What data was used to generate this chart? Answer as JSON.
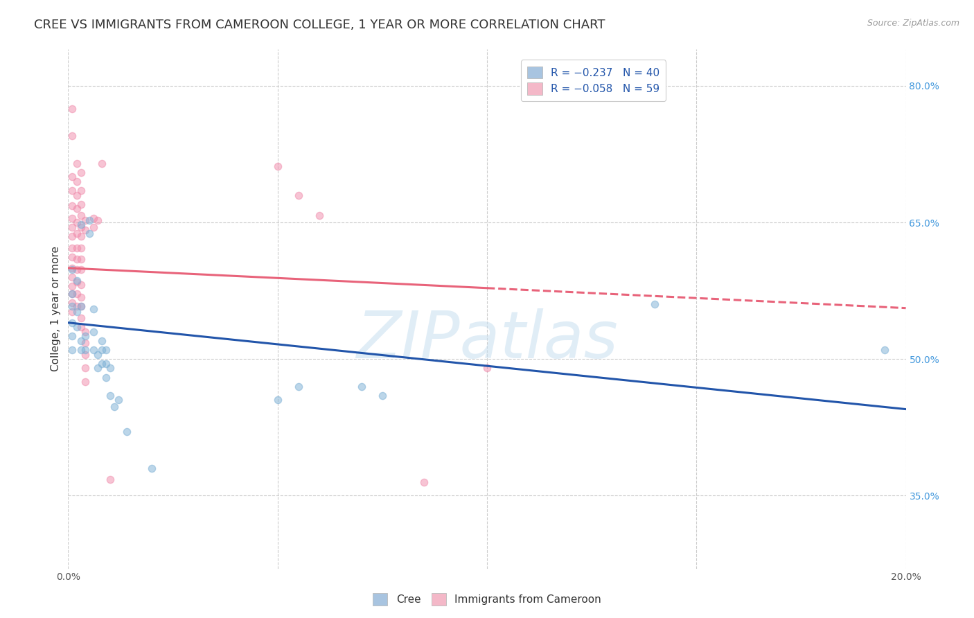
{
  "title": "CREE VS IMMIGRANTS FROM CAMEROON COLLEGE, 1 YEAR OR MORE CORRELATION CHART",
  "source_text": "Source: ZipAtlas.com",
  "ylabel": "College, 1 year or more",
  "xmin": 0.0,
  "xmax": 0.2,
  "ymin": 0.27,
  "ymax": 0.84,
  "yticks": [
    0.35,
    0.5,
    0.65,
    0.8
  ],
  "ytick_labels": [
    "35.0%",
    "50.0%",
    "65.0%",
    "80.0%"
  ],
  "xticks": [
    0.0,
    0.05,
    0.1,
    0.15,
    0.2
  ],
  "xtick_labels": [
    "0.0%",
    "",
    "",
    "",
    "20.0%"
  ],
  "legend_entries": [
    {
      "label": "R = −0.237   N = 40",
      "color": "#a8c4e0"
    },
    {
      "label": "R = −0.058   N = 59",
      "color": "#f4b8c8"
    }
  ],
  "cree_color": "#7bafd4",
  "cameroon_color": "#f08aaa",
  "cree_line_color": "#2255aa",
  "cameroon_line_color": "#e8637a",
  "watermark": "ZIPatlas",
  "blue_dots": [
    [
      0.001,
      0.598
    ],
    [
      0.001,
      0.572
    ],
    [
      0.001,
      0.558
    ],
    [
      0.001,
      0.54
    ],
    [
      0.001,
      0.525
    ],
    [
      0.001,
      0.51
    ],
    [
      0.002,
      0.586
    ],
    [
      0.002,
      0.552
    ],
    [
      0.002,
      0.535
    ],
    [
      0.003,
      0.648
    ],
    [
      0.003,
      0.558
    ],
    [
      0.003,
      0.52
    ],
    [
      0.003,
      0.51
    ],
    [
      0.004,
      0.525
    ],
    [
      0.004,
      0.51
    ],
    [
      0.005,
      0.652
    ],
    [
      0.005,
      0.638
    ],
    [
      0.006,
      0.555
    ],
    [
      0.006,
      0.53
    ],
    [
      0.006,
      0.51
    ],
    [
      0.007,
      0.505
    ],
    [
      0.007,
      0.49
    ],
    [
      0.008,
      0.52
    ],
    [
      0.008,
      0.51
    ],
    [
      0.008,
      0.495
    ],
    [
      0.009,
      0.51
    ],
    [
      0.009,
      0.495
    ],
    [
      0.009,
      0.48
    ],
    [
      0.01,
      0.49
    ],
    [
      0.01,
      0.46
    ],
    [
      0.011,
      0.448
    ],
    [
      0.012,
      0.455
    ],
    [
      0.014,
      0.42
    ],
    [
      0.02,
      0.38
    ],
    [
      0.05,
      0.455
    ],
    [
      0.055,
      0.47
    ],
    [
      0.07,
      0.47
    ],
    [
      0.075,
      0.46
    ],
    [
      0.14,
      0.56
    ],
    [
      0.195,
      0.51
    ]
  ],
  "pink_dots": [
    [
      0.001,
      0.775
    ],
    [
      0.001,
      0.745
    ],
    [
      0.001,
      0.7
    ],
    [
      0.001,
      0.685
    ],
    [
      0.001,
      0.668
    ],
    [
      0.001,
      0.655
    ],
    [
      0.001,
      0.645
    ],
    [
      0.001,
      0.635
    ],
    [
      0.001,
      0.622
    ],
    [
      0.001,
      0.612
    ],
    [
      0.001,
      0.6
    ],
    [
      0.001,
      0.59
    ],
    [
      0.001,
      0.58
    ],
    [
      0.001,
      0.572
    ],
    [
      0.001,
      0.562
    ],
    [
      0.001,
      0.552
    ],
    [
      0.002,
      0.715
    ],
    [
      0.002,
      0.695
    ],
    [
      0.002,
      0.68
    ],
    [
      0.002,
      0.665
    ],
    [
      0.002,
      0.65
    ],
    [
      0.002,
      0.638
    ],
    [
      0.002,
      0.622
    ],
    [
      0.002,
      0.61
    ],
    [
      0.002,
      0.598
    ],
    [
      0.002,
      0.585
    ],
    [
      0.002,
      0.572
    ],
    [
      0.002,
      0.558
    ],
    [
      0.003,
      0.705
    ],
    [
      0.003,
      0.685
    ],
    [
      0.003,
      0.67
    ],
    [
      0.003,
      0.658
    ],
    [
      0.003,
      0.645
    ],
    [
      0.003,
      0.635
    ],
    [
      0.003,
      0.622
    ],
    [
      0.003,
      0.61
    ],
    [
      0.003,
      0.598
    ],
    [
      0.003,
      0.582
    ],
    [
      0.003,
      0.568
    ],
    [
      0.003,
      0.558
    ],
    [
      0.003,
      0.545
    ],
    [
      0.003,
      0.535
    ],
    [
      0.004,
      0.652
    ],
    [
      0.004,
      0.642
    ],
    [
      0.004,
      0.53
    ],
    [
      0.004,
      0.518
    ],
    [
      0.004,
      0.505
    ],
    [
      0.004,
      0.49
    ],
    [
      0.004,
      0.475
    ],
    [
      0.006,
      0.655
    ],
    [
      0.006,
      0.645
    ],
    [
      0.007,
      0.652
    ],
    [
      0.008,
      0.715
    ],
    [
      0.01,
      0.368
    ],
    [
      0.05,
      0.712
    ],
    [
      0.055,
      0.68
    ],
    [
      0.06,
      0.658
    ],
    [
      0.085,
      0.365
    ],
    [
      0.1,
      0.49
    ]
  ],
  "blue_line": {
    "x0": 0.0,
    "y0": 0.54,
    "x1": 0.2,
    "y1": 0.445
  },
  "pink_line_solid": {
    "x0": 0.0,
    "y0": 0.6,
    "x1": 0.1,
    "y1": 0.578
  },
  "pink_line_dashed": {
    "x0": 0.1,
    "y0": 0.578,
    "x1": 0.2,
    "y1": 0.556
  },
  "background_color": "#ffffff",
  "grid_color": "#cccccc",
  "title_fontsize": 13,
  "axis_label_fontsize": 11,
  "tick_fontsize": 10,
  "legend_fontsize": 11,
  "dot_size": 55,
  "dot_alpha": 0.5,
  "dot_linewidth": 1.0
}
